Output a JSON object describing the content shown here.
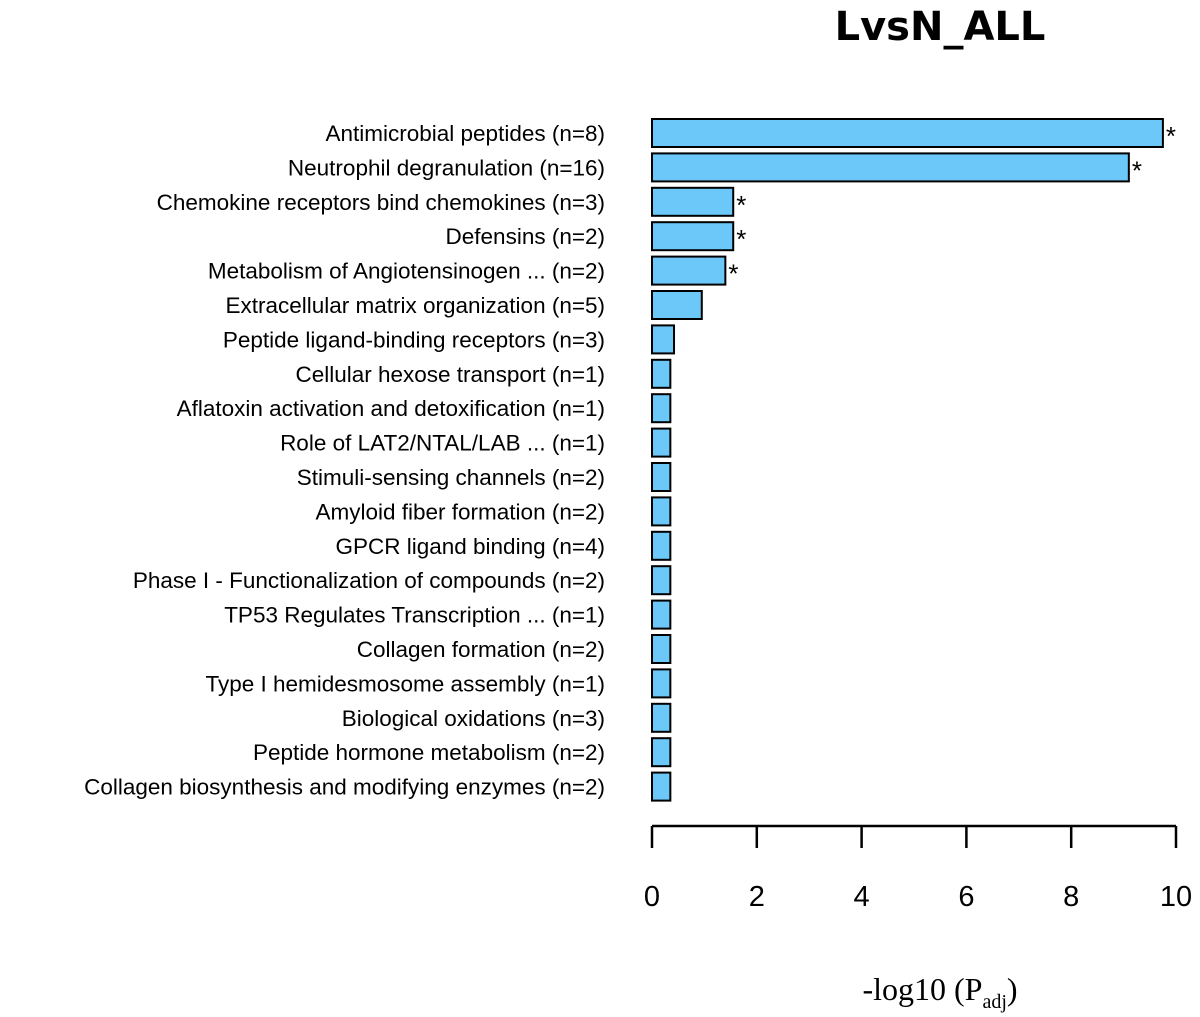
{
  "chart_data": {
    "type": "bar",
    "orientation": "horizontal",
    "title": "LvsN_ALL",
    "xlabel": "-log10 (P",
    "xlabel_subscript": "adj",
    "xlabel_close": ")",
    "xlim": [
      0,
      10
    ],
    "xticks": [
      0,
      2,
      4,
      6,
      8,
      10
    ],
    "bar_color": "#6cc8f8",
    "significance_marker": "*",
    "categories": [
      "Antimicrobial peptides (n=8)",
      "Neutrophil degranulation (n=16)",
      "Chemokine receptors bind chemokines (n=3)",
      "Defensins (n=2)",
      "Metabolism of Angiotensinogen ... (n=2)",
      "Extracellular matrix organization (n=5)",
      "Peptide ligand-binding receptors (n=3)",
      "Cellular hexose transport (n=1)",
      "Aflatoxin activation and detoxification (n=1)",
      "Role of LAT2/NTAL/LAB ... (n=1)",
      "Stimuli-sensing channels (n=2)",
      "Amyloid fiber formation (n=2)",
      "GPCR ligand binding (n=4)",
      "Phase I - Functionalization of compounds (n=2)",
      "TP53 Regulates Transcription ... (n=1)",
      "Collagen formation (n=2)",
      "Type I hemidesmosome assembly (n=1)",
      "Biological oxidations (n=3)",
      "Peptide hormone metabolism (n=2)",
      "Collagen biosynthesis and modifying enzymes (n=2)"
    ],
    "values": [
      9.75,
      9.1,
      1.55,
      1.55,
      1.4,
      0.95,
      0.42,
      0.35,
      0.35,
      0.35,
      0.35,
      0.35,
      0.35,
      0.35,
      0.35,
      0.35,
      0.35,
      0.35,
      0.35,
      0.35
    ],
    "significant": [
      true,
      true,
      true,
      true,
      true,
      false,
      false,
      false,
      false,
      false,
      false,
      false,
      false,
      false,
      false,
      false,
      false,
      false,
      false,
      false
    ]
  }
}
